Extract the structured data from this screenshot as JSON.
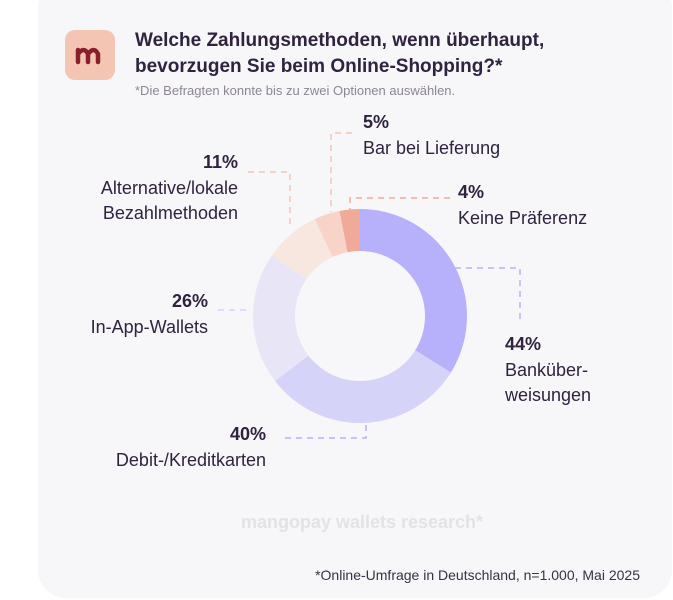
{
  "chart_data": {
    "type": "donut",
    "title": [
      "Welche Zahlungsmethoden, wenn überhaupt,",
      "bevorzugen Sie beim Online-Shopping?*"
    ],
    "subtitle": "*Die Befragten konnte bis zu zwei Optionen auswählen.",
    "categories": [
      [
        "Banküber-",
        "weisungen"
      ],
      [
        "Debit-/Kreditkarten"
      ],
      [
        "In-App-Wallets"
      ],
      [
        "Alternative/lokale",
        "Bezahlmethoden"
      ],
      [
        "Bar bei Lieferung"
      ],
      [
        "Keine Präferenz"
      ]
    ],
    "values": [
      44,
      40,
      26,
      11,
      5,
      4
    ],
    "value_labels": [
      "44%",
      "40%",
      "26%",
      "11%",
      "5%",
      "4%"
    ],
    "colors": [
      "#b7b1fb",
      "#d6d3f8",
      "#e8e6f6",
      "#f8e7df",
      "#f7d4c7",
      "#f0ab98"
    ],
    "watermark": "mangopay wallets research*",
    "source": "*Online-Umfrage in Deutschland, n=1.000, Mai 2025"
  }
}
